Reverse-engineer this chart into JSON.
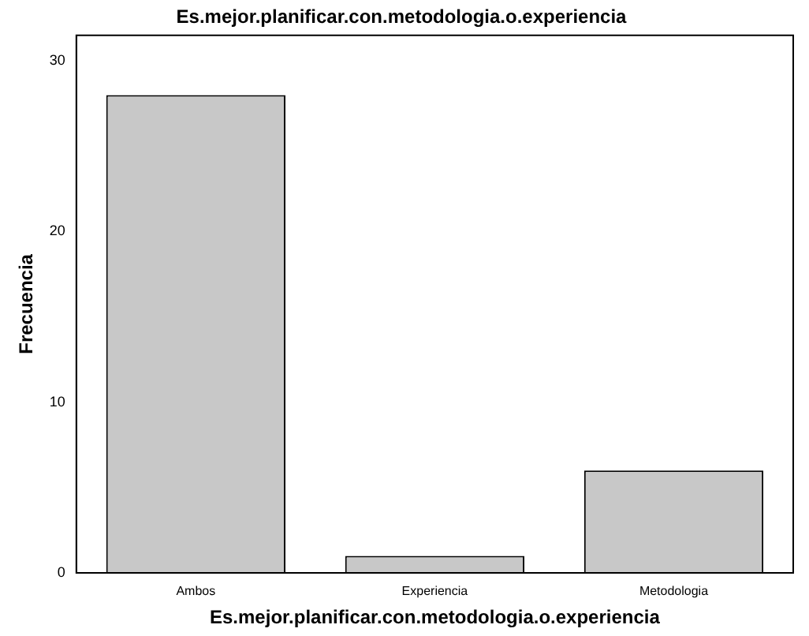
{
  "chart_data": {
    "type": "bar",
    "title": "Es.mejor.planificar.con.metodologia.o.experiencia",
    "xlabel": "Es.mejor.planificar.con.metodologia.o.experiencia",
    "ylabel": "Frecuencia",
    "categories": [
      "Ambos",
      "Experiencia",
      "Metodologia"
    ],
    "values": [
      28,
      1,
      6
    ],
    "color": "#c8c8c8",
    "ylim": [
      0,
      31.5
    ],
    "yticks": [
      0,
      10,
      20,
      30
    ],
    "grid": false,
    "legend": false
  }
}
